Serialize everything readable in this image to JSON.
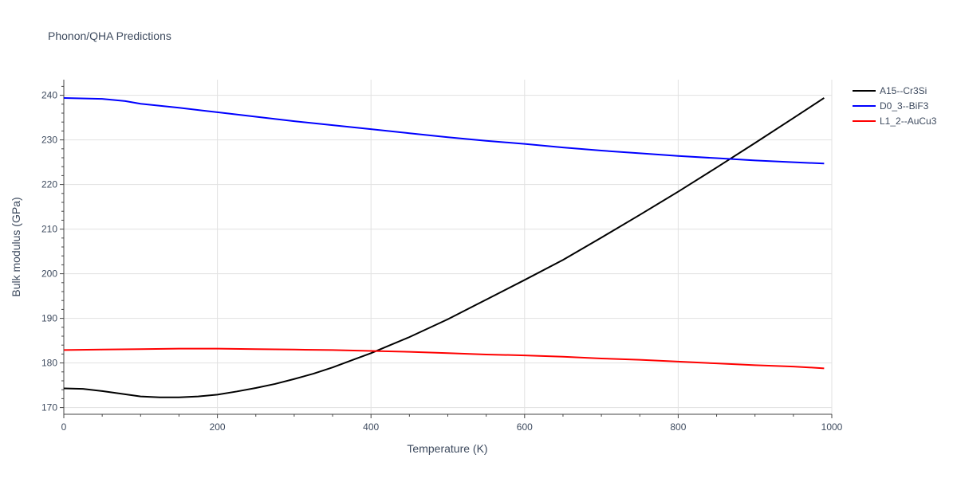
{
  "chart_data": {
    "type": "line",
    "title": "Phonon/QHA Predictions",
    "xlabel": "Temperature (K)",
    "ylabel": "Bulk modulus (GPa)",
    "xlim": [
      0,
      1000
    ],
    "ylim": [
      168.5,
      243.5
    ],
    "xticks": [
      0,
      200,
      400,
      600,
      800,
      1000
    ],
    "yticks": [
      170,
      180,
      190,
      200,
      210,
      220,
      230,
      240
    ],
    "grid": true,
    "legend_position": "top-right",
    "series": [
      {
        "name": "A15--Cr3Si",
        "color": "#000000",
        "x": [
          0,
          25,
          50,
          75,
          100,
          125,
          150,
          175,
          200,
          225,
          250,
          275,
          300,
          325,
          350,
          375,
          400,
          425,
          450,
          500,
          550,
          600,
          650,
          700,
          750,
          800,
          850,
          900,
          950,
          990
        ],
        "y": [
          174.3,
          174.2,
          173.7,
          173.1,
          172.5,
          172.3,
          172.3,
          172.5,
          172.9,
          173.6,
          174.4,
          175.3,
          176.4,
          177.6,
          179.0,
          180.6,
          182.2,
          184.0,
          185.8,
          189.8,
          194.2,
          198.6,
          203.1,
          208.1,
          213.2,
          218.4,
          223.8,
          229.3,
          234.9,
          239.4
        ]
      },
      {
        "name": "D0_3--BiF3",
        "color": "#0000ff",
        "x": [
          0,
          50,
          80,
          100,
          150,
          200,
          250,
          300,
          350,
          400,
          450,
          500,
          550,
          600,
          650,
          700,
          750,
          800,
          850,
          900,
          950,
          990
        ],
        "y": [
          239.4,
          239.2,
          238.7,
          238.1,
          237.2,
          236.2,
          235.2,
          234.2,
          233.3,
          232.4,
          231.5,
          230.6,
          229.8,
          229.1,
          228.3,
          227.6,
          227.0,
          226.4,
          225.9,
          225.4,
          225.0,
          224.7
        ]
      },
      {
        "name": "L1_2--AuCu3",
        "color": "#ff0000",
        "x": [
          0,
          50,
          100,
          150,
          200,
          250,
          300,
          350,
          400,
          450,
          500,
          550,
          600,
          650,
          700,
          750,
          800,
          850,
          900,
          950,
          990
        ],
        "y": [
          182.9,
          183.0,
          183.1,
          183.2,
          183.2,
          183.1,
          183.0,
          182.9,
          182.7,
          182.5,
          182.2,
          181.9,
          181.7,
          181.4,
          181.0,
          180.7,
          180.3,
          179.9,
          179.5,
          179.2,
          178.8
        ]
      }
    ]
  }
}
